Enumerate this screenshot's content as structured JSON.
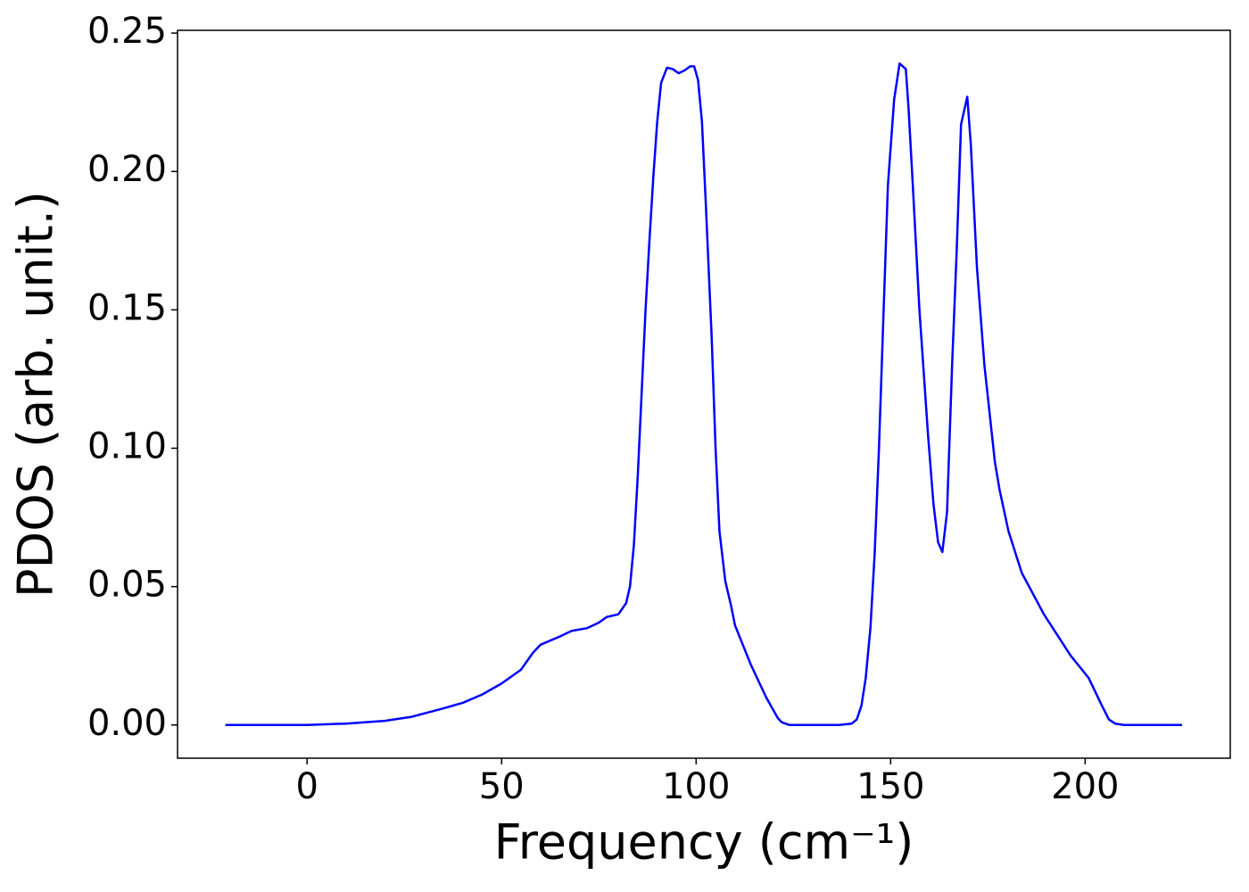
{
  "chart_data": {
    "type": "line",
    "xlabel": "Frequency (cm⁻¹)",
    "ylabel": "PDOS (arb. unit.)",
    "xlim": [
      -33.3,
      237.3
    ],
    "ylim": [
      -0.012,
      0.251
    ],
    "xticks": [
      0,
      50,
      100,
      150,
      200
    ],
    "yticks": [
      {
        "value": 0,
        "label": "0.00"
      },
      {
        "value": 0.05,
        "label": "0.05"
      },
      {
        "value": 0.1,
        "label": "0.10"
      },
      {
        "value": 0.15,
        "label": "0.15"
      },
      {
        "value": 0.2,
        "label": "0.20"
      },
      {
        "value": 0.25,
        "label": "0.25"
      }
    ],
    "series": [
      {
        "color": "#0000ff",
        "x": [
          -21,
          0,
          10,
          20,
          27,
          35,
          40,
          45,
          50,
          55,
          58,
          60,
          65,
          68,
          72,
          75,
          77,
          80,
          82,
          83,
          84,
          85,
          86,
          87,
          88,
          89,
          90,
          91,
          92.5,
          94,
          95.5,
          97,
          98.5,
          99.5,
          100.5,
          101.5,
          102.5,
          104,
          105,
          106,
          107.5,
          109,
          110,
          112,
          114,
          116,
          118,
          120,
          121,
          122,
          124,
          136.7,
          140,
          141.3,
          142.5,
          143.6,
          144.8,
          145.9,
          147.0,
          148.2,
          149.3,
          150.9,
          152.3,
          153.9,
          154.6,
          155.7,
          157.4,
          159.6,
          161.0,
          162.2,
          163.3,
          164.5,
          165.8,
          167.0,
          168.1,
          169.7,
          170.6,
          172.2,
          174.1,
          176.8,
          178.0,
          180.3,
          183.7,
          189.4,
          196.3,
          200.9,
          204.3,
          206.1,
          207.7,
          210.0,
          224.9
        ],
        "values": [
          0,
          0,
          0.0005,
          0.0015,
          0.003,
          0.006,
          0.008,
          0.011,
          0.015,
          0.02,
          0.026,
          0.029,
          0.032,
          0.034,
          0.035,
          0.037,
          0.039,
          0.04,
          0.044,
          0.05,
          0.065,
          0.09,
          0.12,
          0.15,
          0.175,
          0.198,
          0.218,
          0.232,
          0.2375,
          0.237,
          0.2355,
          0.2365,
          0.238,
          0.238,
          0.233,
          0.218,
          0.188,
          0.14,
          0.1,
          0.07,
          0.052,
          0.043,
          0.036,
          0.029,
          0.022,
          0.016,
          0.01,
          0.005,
          0.0025,
          0.001,
          0,
          0,
          0.0005,
          0.002,
          0.007,
          0.017,
          0.035,
          0.062,
          0.1,
          0.15,
          0.195,
          0.226,
          0.239,
          0.237,
          0.223,
          0.195,
          0.15,
          0.105,
          0.08,
          0.066,
          0.0625,
          0.077,
          0.13,
          0.172,
          0.217,
          0.227,
          0.21,
          0.165,
          0.13,
          0.095,
          0.085,
          0.07,
          0.055,
          0.04,
          0.025,
          0.017,
          0.007,
          0.002,
          0.0005,
          0,
          0
        ]
      }
    ]
  }
}
